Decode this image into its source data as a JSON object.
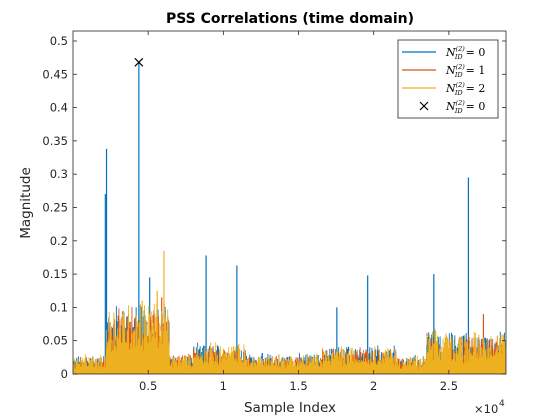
{
  "chart_data": {
    "type": "line",
    "title": "PSS Correlations (time domain)",
    "xlabel": "Sample Index",
    "ylabel": "Magnitude",
    "xlim": [
      0,
      28800
    ],
    "ylim": [
      0,
      0.515
    ],
    "x_multiplier_label": "×10",
    "x_multiplier_exp": "4",
    "xticks": [
      5000,
      10000,
      15000,
      20000,
      25000
    ],
    "xtick_labels": [
      "0.5",
      "1",
      "1.5",
      "2",
      "2.5"
    ],
    "yticks": [
      0,
      0.05,
      0.1,
      0.15,
      0.2,
      0.25,
      0.3,
      0.35,
      0.4,
      0.45,
      0.5
    ],
    "ytick_labels": [
      "0",
      "0.05",
      "0.1",
      "0.15",
      "0.2",
      "0.25",
      "0.3",
      "0.35",
      "0.4",
      "0.45",
      "0.5"
    ],
    "grid": false,
    "legend_position": "top-right",
    "series": [
      {
        "name": "N_ID^(2) = 0",
        "color": "#0072BD",
        "noise_segments": [
          {
            "x0": 0,
            "x1": 2200,
            "level": 0.02
          },
          {
            "x0": 2200,
            "x1": 6400,
            "level": 0.075
          },
          {
            "x0": 6400,
            "x1": 8000,
            "level": 0.022
          },
          {
            "x0": 8000,
            "x1": 11500,
            "level": 0.032
          },
          {
            "x0": 11500,
            "x1": 16500,
            "level": 0.022
          },
          {
            "x0": 16500,
            "x1": 21500,
            "level": 0.03
          },
          {
            "x0": 21500,
            "x1": 23500,
            "level": 0.02
          },
          {
            "x0": 23500,
            "x1": 28800,
            "level": 0.045
          }
        ],
        "peaks": [
          {
            "x": 2150,
            "y": 0.27
          },
          {
            "x": 2230,
            "y": 0.338
          },
          {
            "x": 4380,
            "y": 0.468
          },
          {
            "x": 5100,
            "y": 0.145
          },
          {
            "x": 8850,
            "y": 0.178
          },
          {
            "x": 10900,
            "y": 0.163
          },
          {
            "x": 17550,
            "y": 0.1
          },
          {
            "x": 19600,
            "y": 0.148
          },
          {
            "x": 24000,
            "y": 0.15
          },
          {
            "x": 26300,
            "y": 0.295
          }
        ]
      },
      {
        "name": "N_ID^(2) = 1",
        "color": "#D95319",
        "noise_segments": [
          {
            "x0": 0,
            "x1": 2200,
            "level": 0.018
          },
          {
            "x0": 2200,
            "x1": 6400,
            "level": 0.07
          },
          {
            "x0": 6400,
            "x1": 8000,
            "level": 0.02
          },
          {
            "x0": 8000,
            "x1": 11500,
            "level": 0.03
          },
          {
            "x0": 11500,
            "x1": 16500,
            "level": 0.02
          },
          {
            "x0": 16500,
            "x1": 21500,
            "level": 0.028
          },
          {
            "x0": 21500,
            "x1": 23500,
            "level": 0.018
          },
          {
            "x0": 23500,
            "x1": 28800,
            "level": 0.043
          }
        ],
        "peaks": [
          {
            "x": 5900,
            "y": 0.115
          },
          {
            "x": 27300,
            "y": 0.09
          }
        ]
      },
      {
        "name": "N_ID^(2) = 2",
        "color": "#EDB120",
        "noise_segments": [
          {
            "x0": 0,
            "x1": 2200,
            "level": 0.02
          },
          {
            "x0": 2200,
            "x1": 6400,
            "level": 0.08
          },
          {
            "x0": 6400,
            "x1": 8000,
            "level": 0.022
          },
          {
            "x0": 8000,
            "x1": 11500,
            "level": 0.033
          },
          {
            "x0": 11500,
            "x1": 16500,
            "level": 0.022
          },
          {
            "x0": 16500,
            "x1": 21500,
            "level": 0.03
          },
          {
            "x0": 21500,
            "x1": 23500,
            "level": 0.02
          },
          {
            "x0": 23500,
            "x1": 28800,
            "level": 0.047
          }
        ],
        "peaks": [
          {
            "x": 6050,
            "y": 0.185
          },
          {
            "x": 5600,
            "y": 0.125
          },
          {
            "x": 4600,
            "y": 0.11
          }
        ]
      }
    ],
    "marker": {
      "name": "N_ID^(2) = 0",
      "x": 4380,
      "y": 0.468,
      "symbol": "x",
      "color": "#000000"
    }
  },
  "legend": {
    "entries": [
      {
        "base": "N",
        "sub": "ID",
        "sup": "(2)",
        "value": "= 0",
        "kind": "line",
        "color": "#0072BD"
      },
      {
        "base": "N",
        "sub": "ID",
        "sup": "(2)",
        "value": "= 1",
        "kind": "line",
        "color": "#D95319"
      },
      {
        "base": "N",
        "sub": "ID",
        "sup": "(2)",
        "value": "= 2",
        "kind": "line",
        "color": "#EDB120"
      },
      {
        "base": "N",
        "sub": "ID",
        "sup": "(2)",
        "value": "= 0",
        "kind": "marker",
        "color": "#000000"
      }
    ]
  }
}
